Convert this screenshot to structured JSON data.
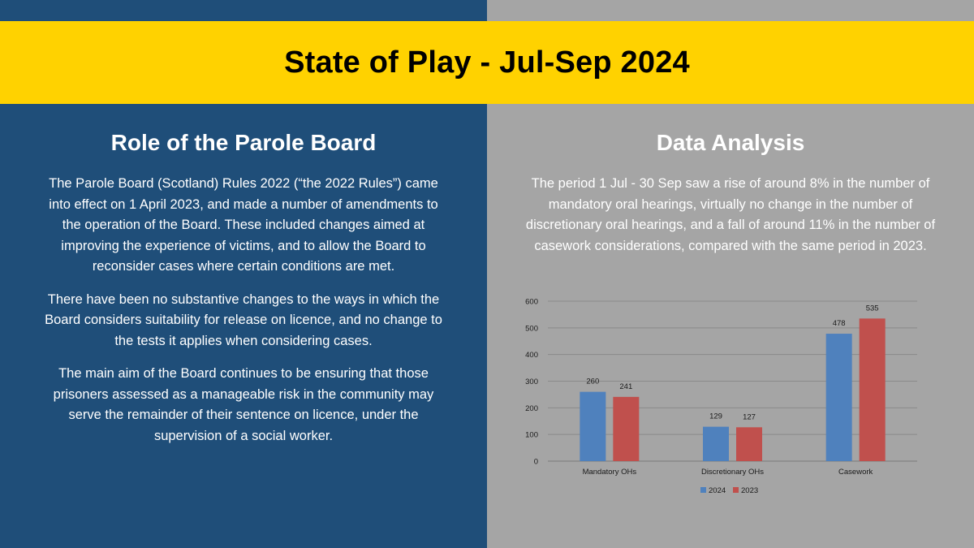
{
  "title": "State of Play - Jul-Sep 2024",
  "left": {
    "heading": "Role of the Parole Board",
    "paragraphs": [
      "The Parole Board (Scotland) Rules 2022 (“the 2022 Rules”) came into effect on 1 April 2023, and made a number of amendments to the operation of the Board. These included changes aimed at improving the experience of victims, and to allow the Board to reconsider cases where certain conditions are met.",
      "There have been no substantive changes to the ways in which the Board considers suitability for release on licence, and no change to the tests it applies when considering cases.",
      "The main aim of the Board continues to be ensuring that those prisoners assessed as a manageable risk in the community may serve the remainder of their sentence on licence, under the supervision of a social worker."
    ]
  },
  "right": {
    "heading": "Data Analysis",
    "paragraph": "The period 1 Jul - 30 Sep saw a rise of around 8% in the number of mandatory oral hearings, virtually no change in the number of discretionary oral hearings, and a fall of around 11% in the number of casework considerations, compared with the same period in 2023."
  },
  "colors": {
    "left_panel": "#1f4e79",
    "right_panel": "#a5a5a5",
    "banner": "#ffd200"
  },
  "chart_data": {
    "type": "bar",
    "categories": [
      "Mandatory OHs",
      "Discretionary OHs",
      "Casework"
    ],
    "series": [
      {
        "name": "2024",
        "values": [
          260,
          129,
          478
        ],
        "color": "#4f81bd"
      },
      {
        "name": "2023",
        "values": [
          241,
          127,
          535
        ],
        "color": "#c0504d"
      }
    ],
    "ylim": [
      0,
      600
    ],
    "yticks": [
      0,
      100,
      200,
      300,
      400,
      500,
      600
    ],
    "grid": true,
    "legend_position": "bottom"
  }
}
